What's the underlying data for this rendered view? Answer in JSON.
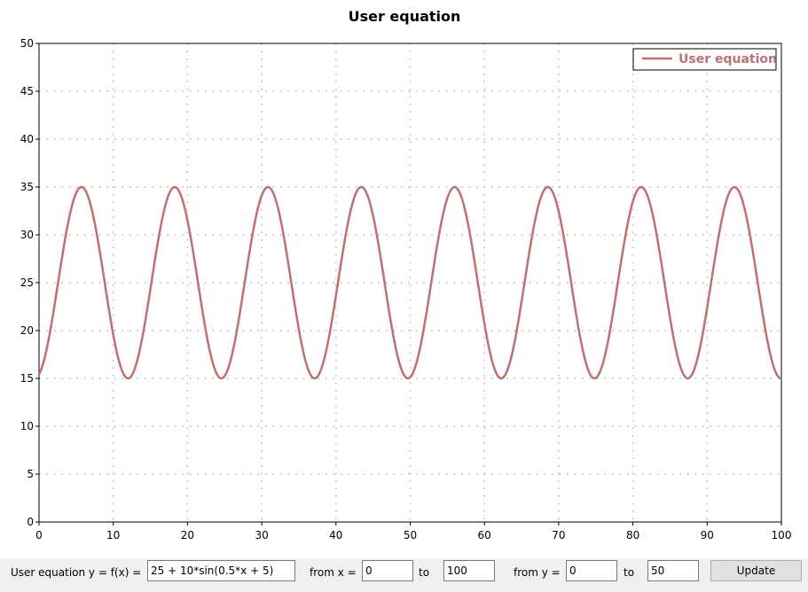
{
  "chart_data": {
    "type": "line",
    "title": "User equation",
    "xlabel": "",
    "ylabel": "",
    "xlim": [
      0,
      100
    ],
    "ylim": [
      0,
      50
    ],
    "x_ticks": [
      0,
      10,
      20,
      30,
      40,
      50,
      60,
      70,
      80,
      90,
      100
    ],
    "y_ticks": [
      0,
      5,
      10,
      15,
      20,
      25,
      30,
      35,
      40,
      45,
      50
    ],
    "grid": true,
    "legend_position": "top-right",
    "series": [
      {
        "name": "User equation",
        "color": "#c07070",
        "expression": "25 + 10*sin(0.5*x + 5)",
        "x": [
          0,
          2,
          4,
          5.71,
          8,
          10,
          11.99,
          14,
          16,
          18.28,
          20,
          22,
          24.55,
          26,
          28,
          30.85,
          33,
          35,
          37.12,
          39,
          41,
          43.42,
          45,
          47,
          49.69,
          51,
          53,
          55.99,
          58,
          60,
          62.25,
          64,
          66,
          68.55,
          70,
          72,
          74.82,
          77,
          79,
          81.12,
          83,
          85,
          87.39,
          89,
          91,
          93.69,
          95,
          97,
          100
        ],
        "y": [
          15.41,
          22.97,
          32.57,
          35,
          30.11,
          20.41,
          15.0,
          18.61,
          27.74,
          35,
          33.27,
          24.71,
          15.0,
          16.08,
          23.59,
          35,
          29.56,
          19.76,
          15.0,
          19.15,
          28.38,
          35,
          33.45,
          25.35,
          15.0,
          16.26,
          24.21,
          35,
          29.0,
          19.12,
          15.0,
          19.71,
          29.0,
          35,
          33.62,
          25.99,
          15.0,
          16.5,
          24.86,
          35,
          28.4,
          18.51,
          15.0,
          20.29,
          29.62,
          35,
          33.77,
          26.63,
          15.24
        ]
      }
    ]
  },
  "controls": {
    "equation_label": "User equation y = f(x) =",
    "equation_value": "25 + 10*sin(0.5*x + 5)",
    "from_x_label": "from x =",
    "from_x_value": "0",
    "to_x_label": "to",
    "to_x_value": "100",
    "from_y_label": "from y =",
    "from_y_value": "0",
    "to_y_label": "to",
    "to_y_value": "50",
    "update_label": "Update"
  }
}
